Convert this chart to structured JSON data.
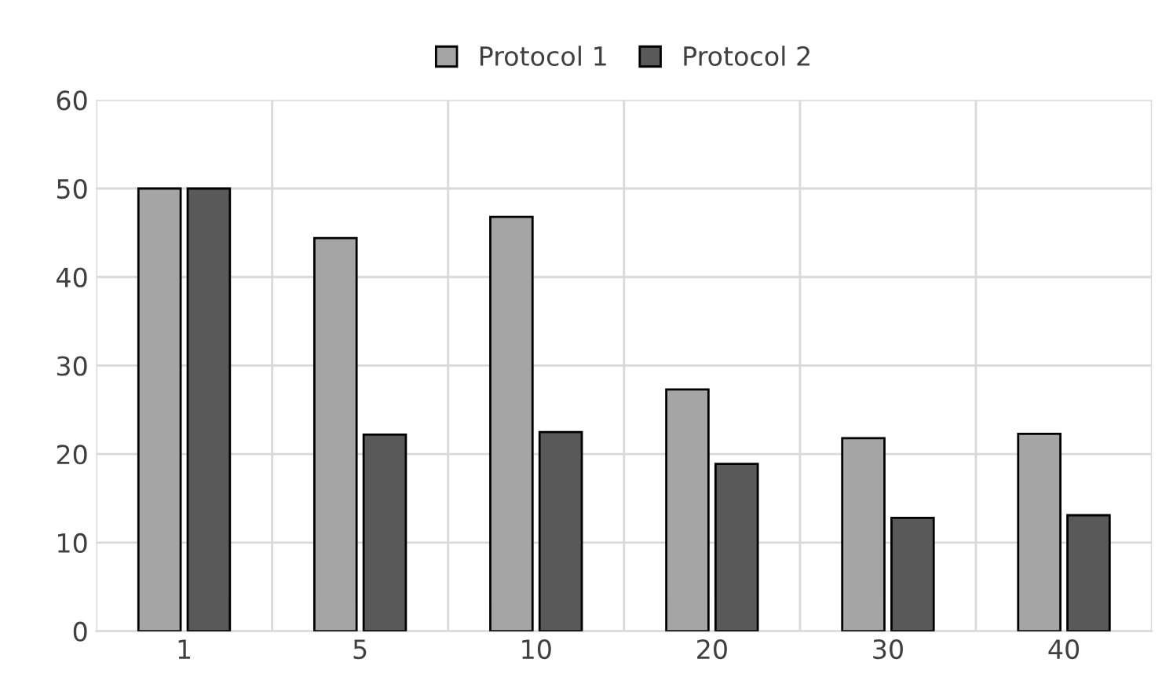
{
  "chart_data": {
    "type": "bar",
    "categories": [
      "1",
      "5",
      "10",
      "20",
      "30",
      "40"
    ],
    "series": [
      {
        "name": "Protocol 1",
        "color": "#a5a5a5",
        "values": [
          50,
          44.4,
          46.8,
          27.3,
          21.8,
          22.3
        ]
      },
      {
        "name": "Protocol 2",
        "color": "#595959",
        "values": [
          50,
          22.2,
          22.5,
          18.9,
          12.8,
          13.1
        ]
      }
    ],
    "ylim": [
      0,
      60
    ],
    "yticks": [
      0,
      10,
      20,
      30,
      40,
      50,
      60
    ],
    "grid": true,
    "legend": "top"
  }
}
